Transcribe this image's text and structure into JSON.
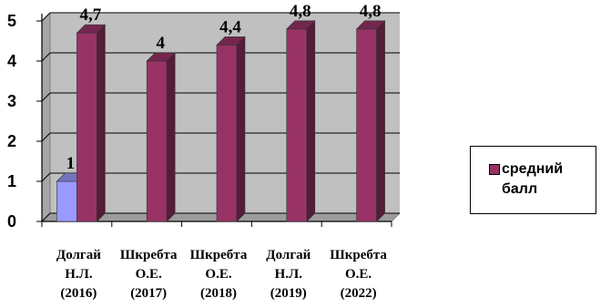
{
  "chart_data": {
    "type": "bar",
    "categories": [
      [
        "Долгай",
        "Н.Л.",
        "(2016)"
      ],
      [
        "Шкребта",
        "О.Е.",
        "(2017)"
      ],
      [
        "Шкребта",
        "О.Е.",
        "(2018)"
      ],
      [
        "Долгай",
        "Н.Л.",
        "(2019)"
      ],
      [
        "Шкребта",
        "О.Е.",
        "(2022)"
      ]
    ],
    "series": [
      {
        "name": "",
        "color": "#9999ff",
        "values": [
          1,
          null,
          null,
          null,
          null
        ],
        "labels": [
          "1",
          "",
          "",
          "",
          ""
        ]
      },
      {
        "name": "средний балл",
        "color": "#993366",
        "values": [
          4.7,
          4,
          4.4,
          4.8,
          4.8
        ],
        "labels": [
          "4,7",
          "4",
          "4,4",
          "4,8",
          "4,8"
        ]
      }
    ],
    "yticks": [
      "0",
      "1",
      "2",
      "3",
      "4",
      "5"
    ],
    "ylim": [
      0,
      5
    ],
    "grid": true,
    "plot_background": "#c0c0c0",
    "legend_position": "right"
  },
  "legend": {
    "label": "средний балл"
  }
}
